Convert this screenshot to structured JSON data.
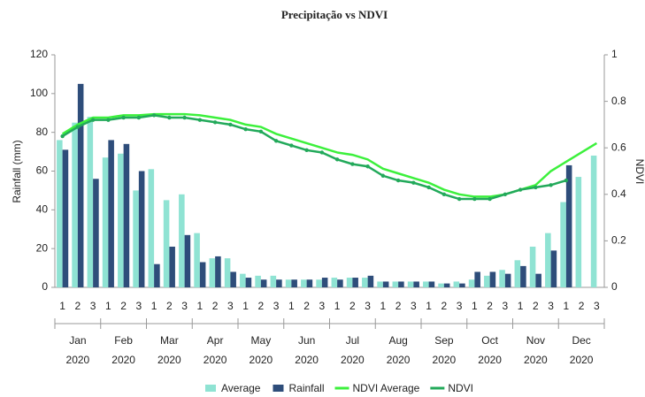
{
  "chart_data": {
    "type": "bar_line",
    "title": "Precipitação vs NDVI",
    "y_label": "Rainfall (mm)",
    "y2_label": "NDVI",
    "categories": [
      "1",
      "2",
      "3",
      "1",
      "2",
      "3",
      "1",
      "2",
      "3",
      "1",
      "2",
      "3",
      "1",
      "2",
      "3",
      "1",
      "2",
      "3",
      "1",
      "2",
      "3",
      "1",
      "2",
      "3",
      "1",
      "2",
      "3",
      "1",
      "2",
      "3",
      "1",
      "2",
      "3",
      "1",
      "2",
      "3"
    ],
    "month_groups": [
      {
        "month": "Jan",
        "year": "2020"
      },
      {
        "month": "Feb",
        "year": "2020"
      },
      {
        "month": "Mar",
        "year": "2020"
      },
      {
        "month": "Apr",
        "year": "2020"
      },
      {
        "month": "May",
        "year": "2020"
      },
      {
        "month": "Jun",
        "year": "2020"
      },
      {
        "month": "Jul",
        "year": "2020"
      },
      {
        "month": "Aug",
        "year": "2020"
      },
      {
        "month": "Sep",
        "year": "2020"
      },
      {
        "month": "Oct",
        "year": "2020"
      },
      {
        "month": "Nov",
        "year": "2020"
      },
      {
        "month": "Dec",
        "year": "2020"
      }
    ],
    "ylim": [
      0,
      120
    ],
    "yticks": [
      0,
      20,
      40,
      60,
      80,
      100,
      120
    ],
    "y2lim": [
      0,
      1
    ],
    "y2ticks": [
      0,
      0.2,
      0.4,
      0.6,
      0.8,
      1
    ],
    "series": [
      {
        "name": "Average",
        "kind": "bar",
        "color": "#8fe3d3",
        "values": [
          76,
          85,
          88,
          67,
          69,
          50,
          61,
          45,
          48,
          28,
          15,
          15,
          7,
          6,
          6,
          4,
          4,
          4,
          5,
          5,
          5,
          3,
          3,
          3,
          3,
          2,
          3,
          4,
          6,
          9,
          14,
          21,
          28,
          44,
          57,
          68
        ]
      },
      {
        "name": "Rainfall",
        "kind": "bar",
        "color": "#2e4d7a",
        "values": [
          71,
          105,
          56,
          76,
          74,
          60,
          12,
          21,
          27,
          13,
          16,
          8,
          5,
          4,
          4,
          4,
          4,
          5,
          4,
          5,
          6,
          3,
          3,
          3,
          3,
          2,
          2,
          8,
          8,
          7,
          11,
          7,
          19,
          63,
          null,
          null
        ]
      },
      {
        "name": "NDVI Average",
        "kind": "line",
        "axis": "y2",
        "color": "#3cf03c",
        "values": [
          0.66,
          0.7,
          0.73,
          0.73,
          0.74,
          0.74,
          0.745,
          0.745,
          0.745,
          0.74,
          0.73,
          0.72,
          0.7,
          0.69,
          0.66,
          0.64,
          0.62,
          0.6,
          0.58,
          0.57,
          0.55,
          0.51,
          0.49,
          0.47,
          0.45,
          0.42,
          0.4,
          0.39,
          0.39,
          0.4,
          0.42,
          0.44,
          0.5,
          0.54,
          0.58,
          0.62
        ]
      },
      {
        "name": "NDVI",
        "kind": "line",
        "axis": "y2",
        "markers": true,
        "color": "#22a95a",
        "values": [
          0.65,
          0.69,
          0.72,
          0.72,
          0.73,
          0.73,
          0.74,
          0.73,
          0.73,
          0.72,
          0.71,
          0.7,
          0.68,
          0.67,
          0.63,
          0.61,
          0.59,
          0.58,
          0.55,
          0.53,
          0.52,
          0.48,
          0.46,
          0.45,
          0.43,
          0.4,
          0.38,
          0.38,
          0.38,
          0.4,
          0.42,
          0.43,
          0.44,
          0.46,
          null,
          null
        ]
      }
    ]
  }
}
